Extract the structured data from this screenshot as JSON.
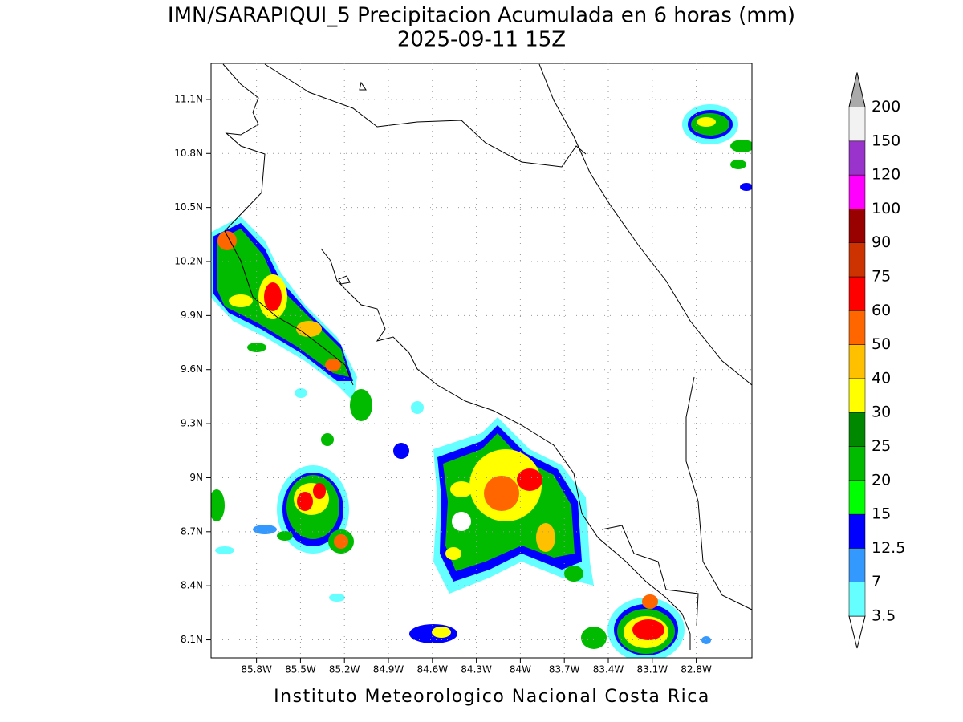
{
  "chart_data": {
    "type": "map",
    "title": "IMN/SARAPIQUI_5 Precipitacion Acumulada en 6 horas (mm)",
    "subtitle": "2025-09-11 15Z",
    "footer": "Instituto Meteorologico Nacional Costa Rica",
    "xlim": [
      -86.11,
      -82.42
    ],
    "ylim": [
      8.0,
      11.3
    ],
    "xticks": [
      {
        "value": -85.8,
        "label": "85.8W"
      },
      {
        "value": -85.5,
        "label": "85.5W"
      },
      {
        "value": -85.2,
        "label": "85.2W"
      },
      {
        "value": -84.9,
        "label": "84.9W"
      },
      {
        "value": -84.6,
        "label": "84.6W"
      },
      {
        "value": -84.3,
        "label": "84.3W"
      },
      {
        "value": -84.0,
        "label": "84W"
      },
      {
        "value": -83.7,
        "label": "83.7W"
      },
      {
        "value": -83.4,
        "label": "83.4W"
      },
      {
        "value": -83.1,
        "label": "83.1W"
      },
      {
        "value": -82.8,
        "label": "82.8W"
      }
    ],
    "yticks": [
      {
        "value": 8.1,
        "label": "8.1N"
      },
      {
        "value": 8.4,
        "label": "8.4N"
      },
      {
        "value": 8.7,
        "label": "8.7N"
      },
      {
        "value": 9.0,
        "label": "9N"
      },
      {
        "value": 9.3,
        "label": "9.3N"
      },
      {
        "value": 9.6,
        "label": "9.6N"
      },
      {
        "value": 9.9,
        "label": "9.9N"
      },
      {
        "value": 10.2,
        "label": "10.2N"
      },
      {
        "value": 10.5,
        "label": "10.5N"
      },
      {
        "value": 10.8,
        "label": "10.8N"
      },
      {
        "value": 11.1,
        "label": "11.1N"
      }
    ],
    "grid": true,
    "colorbar": {
      "levels": [
        3.5,
        7,
        12.5,
        15,
        20,
        25,
        30,
        40,
        50,
        60,
        75,
        90,
        100,
        120,
        150,
        200
      ],
      "colors": [
        "#ffffff",
        "#66ffff",
        "#3399ff",
        "#0000ff",
        "#00ff00",
        "#00bb00",
        "#008800",
        "#ffff00",
        "#ffc000",
        "#ff6600",
        "#ff0000",
        "#cc3300",
        "#990000",
        "#ff00ff",
        "#9933cc",
        "#f2f2f2",
        "#aaaaaa"
      ]
    }
  }
}
